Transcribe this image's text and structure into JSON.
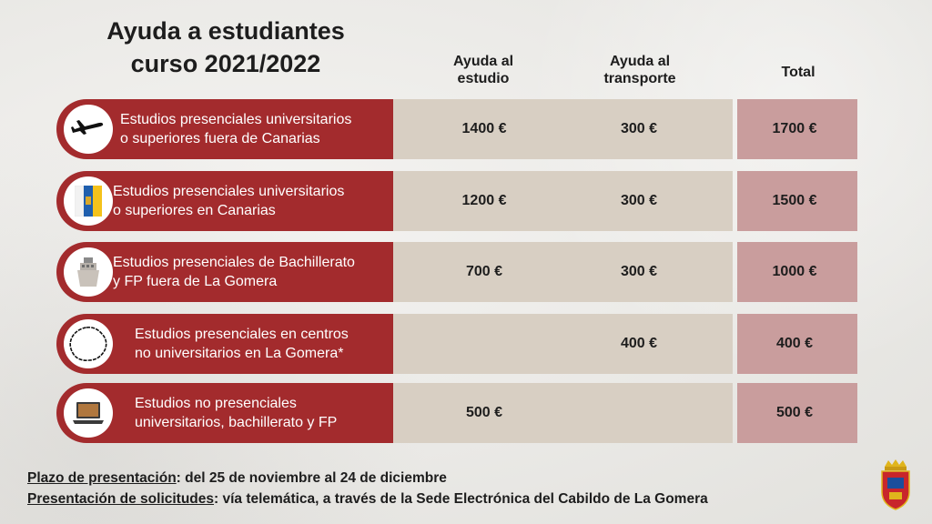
{
  "title_line1": "Ayuda a estudiantes",
  "title_line2": "curso 2021/2022",
  "columns": {
    "study": [
      "Ayuda al",
      "estudio"
    ],
    "transport": [
      "Ayuda al",
      "transporte"
    ],
    "total": "Total"
  },
  "rows": [
    {
      "icon": "airplane-icon",
      "label": [
        "Estudios presenciales universitarios",
        "o superiores fuera de Canarias"
      ],
      "study": "1400 €",
      "transport": "300 €",
      "total": "1700 €"
    },
    {
      "icon": "canary-flag-icon",
      "label": [
        "Estudios presenciales universitarios",
        "o superiores en Canarias"
      ],
      "study": "1200 €",
      "transport": "300 €",
      "total": "1500 €"
    },
    {
      "icon": "ferry-icon",
      "label": [
        "Estudios presenciales de Bachillerato",
        "y FP fuera de La Gomera"
      ],
      "study": "700 €",
      "transport": "300 €",
      "total": "1000 €"
    },
    {
      "icon": "island-outline-icon",
      "label": [
        "Estudios presenciales en centros",
        "no universitarios en La Gomera*"
      ],
      "study": "",
      "transport": "400 €",
      "total": "400 €"
    },
    {
      "icon": "laptop-icon",
      "label": [
        "Estudios no presenciales",
        "universitarios, bachillerato y FP"
      ],
      "study": "500 €",
      "transport": "",
      "total": "500 €"
    }
  ],
  "footer": {
    "deadline_label": "Plazo de presentación",
    "deadline_text": ": del 25 de noviembre al 24 de diciembre",
    "submission_label": "Presentación de solicitudes",
    "submission_text": ": vía telemática, a través de la Sede Electrónica del Cabildo de La Gomera"
  },
  "logo": "cabildo-la-gomera-crest-icon",
  "colors": {
    "red": "#a32b2d",
    "beige": "#d8cfc3",
    "pink": "#c99d9d"
  }
}
